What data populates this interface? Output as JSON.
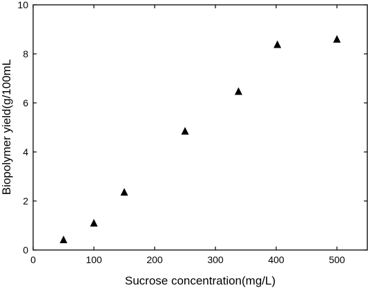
{
  "chart_data": {
    "type": "scatter",
    "xlabel": "Sucrose concentration(mg/L)",
    "ylabel": "Biopolymer yield(g/100mL",
    "xlim": [
      0,
      550
    ],
    "ylim": [
      0,
      10
    ],
    "x_ticks": [
      0,
      100,
      200,
      300,
      400,
      500
    ],
    "y_ticks": [
      0,
      2,
      4,
      6,
      8,
      10
    ],
    "x_tick_labels": [
      "0",
      "100",
      "200",
      "300",
      "400",
      "500"
    ],
    "y_tick_labels": [
      "0",
      "2",
      "4",
      "6",
      "8",
      "10"
    ],
    "marker": "triangle",
    "marker_color": "#000000",
    "grid": false,
    "legend": "none",
    "series": [
      {
        "x": [
          50,
          100,
          150,
          250,
          338,
          402,
          500
        ],
        "y": [
          0.42,
          1.1,
          2.36,
          4.85,
          6.47,
          8.38,
          8.6
        ]
      }
    ]
  }
}
